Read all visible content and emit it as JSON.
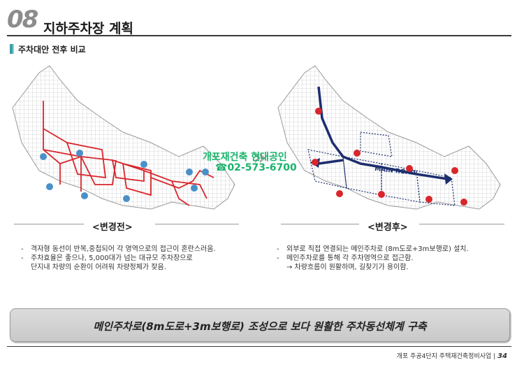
{
  "header": {
    "section_number": "08",
    "title": "지하주차장 계획"
  },
  "subheading": "주차대안 전후 비교",
  "before": {
    "label": "<변경전>",
    "notes": [
      "격자형 동선이 반복,중첩되어 각 영역으로의 접근이 혼란스러움.",
      "주차효율은 좋으나, 5,000대가 넘는 대규모 주차장으로",
      "단지내 차량의 순환이 어려워 차량정체가 잦음."
    ]
  },
  "after": {
    "label": "<변경후>",
    "road_label": "MAIN ROAD",
    "notes": [
      "외부로 직접 연결되는 메인주차로 (8m도로+3m보행로) 설치.",
      "메인주차로를 통해 각 주차영역으로 접근함.",
      "→ 차량흐름이 원활하며, 길찾기가 용이함."
    ]
  },
  "watermark": {
    "line1": "개포재건축 현대공인",
    "line2": "☎02-573-6700"
  },
  "banner": "메인주차로(8m도로+3m보행로) 조성으로 보다 원활한 주차동선체계 구축",
  "footer": {
    "text": "개포 주공4단지 주택재건축정비사업 |",
    "page": "34"
  },
  "colors": {
    "accent": "#5fae3e",
    "teal": "#35a0a6",
    "red_route": "#d8262b",
    "blue_node": "#4a90c8",
    "navy_route": "#1c2e6e"
  }
}
